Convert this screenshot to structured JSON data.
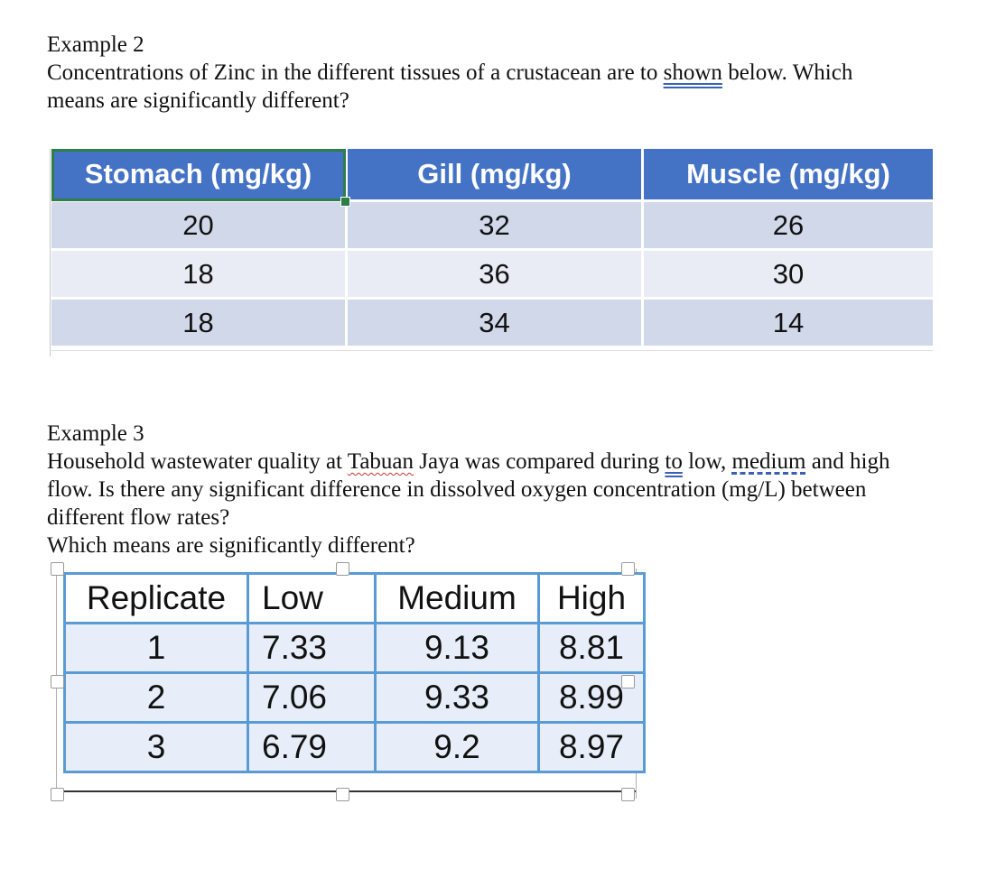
{
  "example2": {
    "heading": "Example 2",
    "line1_pre": "Concentrations of Zinc in the different tissues of a crustacean are to ",
    "line1_ul": "shown",
    "line1_post": " below. Which",
    "line2": "means are significantly different?"
  },
  "table1": {
    "headers": [
      "Stomach (mg/kg)",
      "Gill (mg/kg)",
      "Muscle (mg/kg)"
    ],
    "rows": [
      [
        "20",
        "32",
        "26"
      ],
      [
        "18",
        "36",
        "30"
      ],
      [
        "18",
        "34",
        "14"
      ]
    ]
  },
  "example3": {
    "heading": "Example 3",
    "line1_a": "Household wastewater quality at ",
    "line1_b": "Tabuan",
    "line1_c": " Jaya was compared during ",
    "line1_d": "to",
    "line1_e": " low, ",
    "line1_f": "medium",
    "line1_g": " and high",
    "line2": "flow. Is there any significant difference in dissolved oxygen concentration (mg/L) between",
    "line3": "different flow rates?",
    "line4": "Which means are significantly different?"
  },
  "table2": {
    "headers": [
      "Replicate",
      "Low",
      "Medium",
      "High"
    ],
    "rows": [
      [
        "1",
        "7.33",
        "9.13",
        "8.81"
      ],
      [
        "2",
        "7.06",
        "9.33",
        "8.99"
      ],
      [
        "3",
        "6.79",
        "9.2",
        "8.97"
      ]
    ]
  },
  "colors": {
    "header_blue": "#4472c4",
    "selection_green": "#2e7d4b",
    "table2_border": "#5b9bd5"
  }
}
